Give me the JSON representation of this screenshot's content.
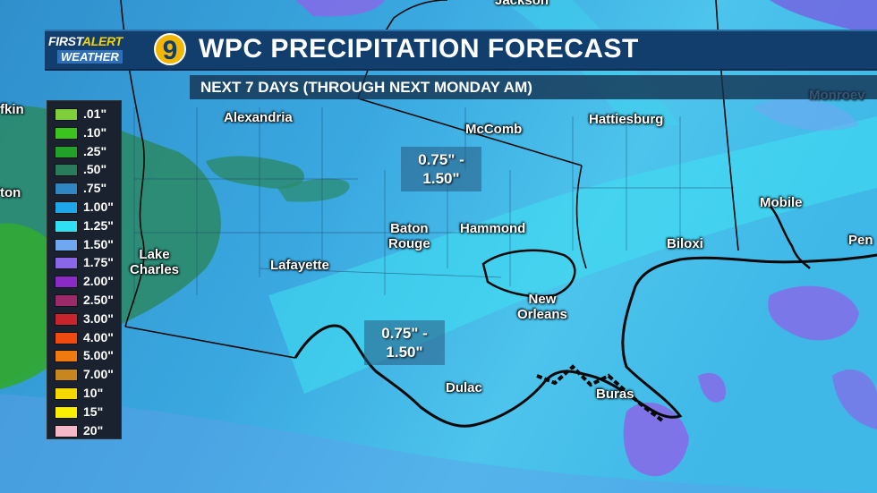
{
  "header": {
    "logo_first": "FIRST",
    "logo_alert": "ALERT",
    "logo_weather": "WEATHER",
    "logo_channel": "9",
    "title": "WPC PRECIPITATION FORECAST",
    "subtitle": "NEXT 7 DAYS (THROUGH NEXT MONDAY AM)"
  },
  "cities": [
    {
      "id": "jackson",
      "label": "Jackson"
    },
    {
      "id": "monroeville",
      "label": "Monroev"
    },
    {
      "id": "lufkin",
      "label": "fkin"
    },
    {
      "id": "houston",
      "label": "ton"
    },
    {
      "id": "alexandria",
      "label": "Alexandria"
    },
    {
      "id": "mccomb",
      "label": "McComb"
    },
    {
      "id": "hattiesburg",
      "label": "Hattiesburg"
    },
    {
      "id": "mobile",
      "label": "Mobile"
    },
    {
      "id": "pensacola",
      "label": "Pen"
    },
    {
      "id": "baton-rouge",
      "label": "Baton\nRouge"
    },
    {
      "id": "hammond",
      "label": "Hammond"
    },
    {
      "id": "biloxi",
      "label": "Biloxi"
    },
    {
      "id": "lake-charles",
      "label": "Lake\nCharles"
    },
    {
      "id": "lafayette",
      "label": "Lafayette"
    },
    {
      "id": "new-orleans",
      "label": "New\nOrleans"
    },
    {
      "id": "dulac",
      "label": "Dulac"
    },
    {
      "id": "buras",
      "label": "Buras"
    }
  ],
  "amount_boxes": [
    {
      "id": "north",
      "line1": "0.75\" -",
      "line2": "1.50\""
    },
    {
      "id": "south",
      "line1": "0.75\" -",
      "line2": "1.50\""
    }
  ],
  "legend": [
    {
      "label": ".01\"",
      "color": "#7fce3c"
    },
    {
      "label": ".10\"",
      "color": "#3bc41d"
    },
    {
      "label": ".25\"",
      "color": "#22a02a"
    },
    {
      "label": ".50\"",
      "color": "#2a7a5c"
    },
    {
      "label": ".75\"",
      "color": "#2f86c4"
    },
    {
      "label": "1.00\"",
      "color": "#1ea6e8"
    },
    {
      "label": "1.25\"",
      "color": "#2fe0f5"
    },
    {
      "label": "1.50\"",
      "color": "#6fa8f0"
    },
    {
      "label": "1.75\"",
      "color": "#8a66e8"
    },
    {
      "label": "2.00\"",
      "color": "#8a2bc8"
    },
    {
      "label": "2.50\"",
      "color": "#9a2a6a"
    },
    {
      "label": "3.00\"",
      "color": "#c8242e"
    },
    {
      "label": "4.00\"",
      "color": "#f04a10"
    },
    {
      "label": "5.00\"",
      "color": "#f07a10"
    },
    {
      "label": "7.00\"",
      "color": "#c8861e"
    },
    {
      "label": "10\"",
      "color": "#f5d800"
    },
    {
      "label": "15\"",
      "color": "#f8f000"
    },
    {
      "label": "20\"",
      "color": "#f5b8c8"
    }
  ]
}
